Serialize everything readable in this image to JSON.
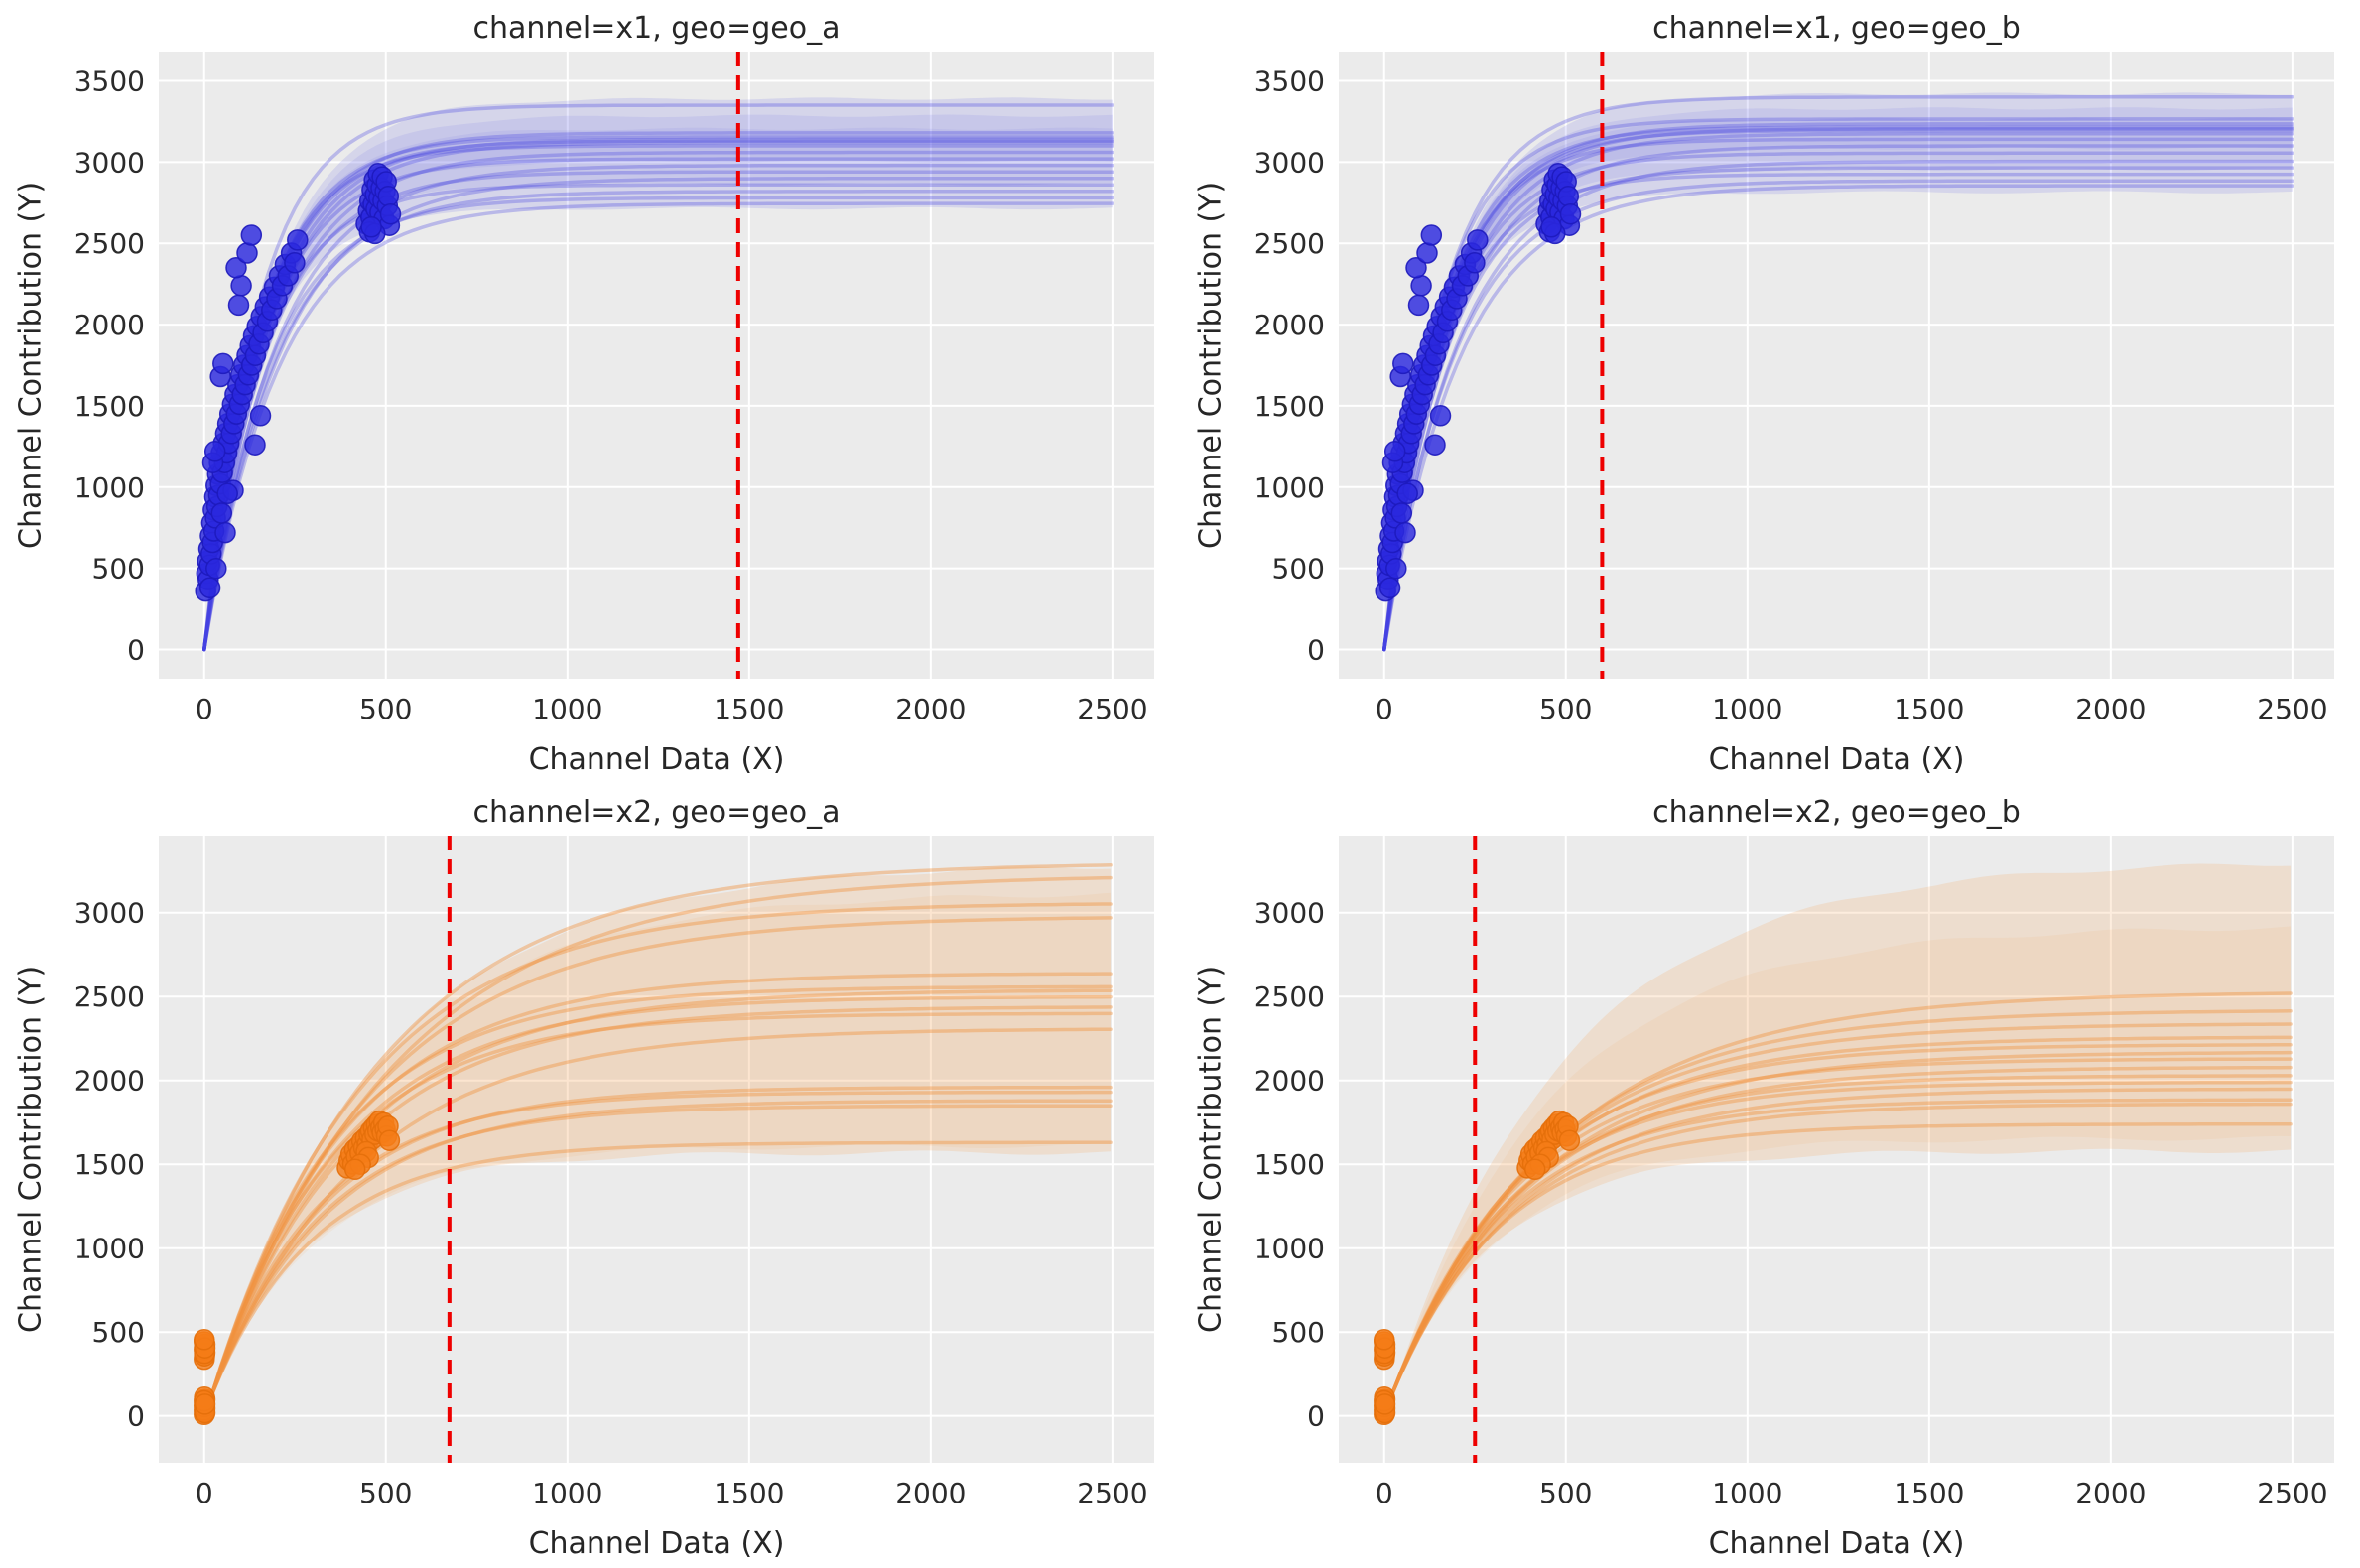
{
  "figure": {
    "background": "#ffffff",
    "plot_background": "#ebebeb",
    "grid_color": "#ffffff",
    "text_color": "#262626",
    "tick_color": "#2b2b2b",
    "vline_color": "#ee0000",
    "vline_dash": "15 9"
  },
  "chart_data": {
    "type": "line",
    "layout": "2x2 faceted posterior saturation curves with scatter and HDI bands",
    "curve_model": "y = y_offset + (ymax - y_offset) * (1 - exp(-(x - x_offset)/tau))",
    "shared": {
      "xlabel": "Channel Data (X)",
      "ylabel": "Channel Contribution (Y)",
      "xticks": [
        0,
        500,
        1000,
        1500,
        2000,
        2500
      ],
      "xlim": [
        -125,
        2615
      ],
      "grid": true,
      "legend": false
    },
    "scatter_sets": {
      "x1": [
        [
          4,
          360
        ],
        [
          7,
          470
        ],
        [
          9,
          545
        ],
        [
          11,
          430
        ],
        [
          13,
          620
        ],
        [
          15,
          520
        ],
        [
          17,
          700
        ],
        [
          19,
          590
        ],
        [
          21,
          780
        ],
        [
          23,
          660
        ],
        [
          25,
          860
        ],
        [
          27,
          730
        ],
        [
          29,
          940
        ],
        [
          31,
          810
        ],
        [
          33,
          1010
        ],
        [
          35,
          880
        ],
        [
          37,
          1080
        ],
        [
          40,
          950
        ],
        [
          42,
          1150
        ],
        [
          45,
          1020
        ],
        [
          47,
          1210
        ],
        [
          50,
          1090
        ],
        [
          53,
          1270
        ],
        [
          56,
          1150
        ],
        [
          59,
          1330
        ],
        [
          62,
          1210
        ],
        [
          65,
          1390
        ],
        [
          68,
          1270
        ],
        [
          71,
          1450
        ],
        [
          75,
          1330
        ],
        [
          78,
          1510
        ],
        [
          82,
          1390
        ],
        [
          85,
          1570
        ],
        [
          89,
          1450
        ],
        [
          93,
          1630
        ],
        [
          97,
          1510
        ],
        [
          101,
          1690
        ],
        [
          105,
          1570
        ],
        [
          109,
          1750
        ],
        [
          113,
          1630
        ],
        [
          118,
          1810
        ],
        [
          122,
          1690
        ],
        [
          127,
          1870
        ],
        [
          131,
          1750
        ],
        [
          136,
          1930
        ],
        [
          141,
          1810
        ],
        [
          146,
          1990
        ],
        [
          151,
          1880
        ],
        [
          157,
          2050
        ],
        [
          162,
          1950
        ],
        [
          168,
          2110
        ],
        [
          174,
          2020
        ],
        [
          180,
          2170
        ],
        [
          186,
          2090
        ],
        [
          193,
          2230
        ],
        [
          200,
          2160
        ],
        [
          207,
          2300
        ],
        [
          215,
          2240
        ],
        [
          223,
          2370
        ],
        [
          231,
          2300
        ],
        [
          240,
          2440
        ],
        [
          249,
          2380
        ],
        [
          257,
          2520
        ],
        [
          24,
          1150
        ],
        [
          30,
          1220
        ],
        [
          45,
          1680
        ],
        [
          52,
          1760
        ],
        [
          95,
          2120
        ],
        [
          102,
          2240
        ],
        [
          88,
          2350
        ],
        [
          118,
          2440
        ],
        [
          130,
          2550
        ],
        [
          16,
          380
        ],
        [
          33,
          500
        ],
        [
          58,
          720
        ],
        [
          80,
          980
        ],
        [
          140,
          1260
        ],
        [
          155,
          1440
        ],
        [
          48,
          840
        ],
        [
          64,
          960
        ],
        [
          446,
          2620
        ],
        [
          452,
          2700
        ],
        [
          456,
          2760
        ],
        [
          459,
          2660
        ],
        [
          462,
          2830
        ],
        [
          465,
          2740
        ],
        [
          468,
          2890
        ],
        [
          471,
          2800
        ],
        [
          473,
          2710
        ],
        [
          476,
          2860
        ],
        [
          479,
          2930
        ],
        [
          481,
          2780
        ],
        [
          484,
          2690
        ],
        [
          487,
          2840
        ],
        [
          490,
          2910
        ],
        [
          492,
          2760
        ],
        [
          495,
          2650
        ],
        [
          498,
          2820
        ],
        [
          501,
          2880
        ],
        [
          504,
          2730
        ],
        [
          507,
          2790
        ],
        [
          510,
          2610
        ],
        [
          513,
          2680
        ],
        [
          455,
          2570
        ],
        [
          470,
          2560
        ],
        [
          460,
          2600
        ]
      ],
      "x2": [
        [
          0,
          8
        ],
        [
          1,
          25
        ],
        [
          2,
          45
        ],
        [
          0,
          62
        ],
        [
          1,
          80
        ],
        [
          2,
          98
        ],
        [
          0,
          35
        ],
        [
          1,
          55
        ],
        [
          2,
          18
        ],
        [
          1,
          112
        ],
        [
          0,
          90
        ],
        [
          2,
          70
        ],
        [
          0,
          338
        ],
        [
          1,
          358
        ],
        [
          2,
          378
        ],
        [
          0,
          395
        ],
        [
          1,
          412
        ],
        [
          2,
          428
        ],
        [
          0,
          442
        ],
        [
          1,
          372
        ],
        [
          2,
          405
        ],
        [
          0,
          455
        ],
        [
          394,
          1478
        ],
        [
          399,
          1522
        ],
        [
          404,
          1560
        ],
        [
          409,
          1502
        ],
        [
          414,
          1588
        ],
        [
          419,
          1545
        ],
        [
          424,
          1608
        ],
        [
          429,
          1568
        ],
        [
          434,
          1638
        ],
        [
          439,
          1598
        ],
        [
          444,
          1658
        ],
        [
          449,
          1618
        ],
        [
          454,
          1678
        ],
        [
          458,
          1698
        ],
        [
          462,
          1648
        ],
        [
          466,
          1718
        ],
        [
          470,
          1678
        ],
        [
          474,
          1738
        ],
        [
          478,
          1698
        ],
        [
          482,
          1758
        ],
        [
          486,
          1718
        ],
        [
          490,
          1688
        ],
        [
          494,
          1748
        ],
        [
          498,
          1708
        ],
        [
          502,
          1668
        ],
        [
          506,
          1728
        ],
        [
          510,
          1642
        ],
        [
          446,
          1575
        ],
        [
          452,
          1540
        ],
        [
          430,
          1500
        ],
        [
          415,
          1470
        ]
      ]
    },
    "panels": [
      {
        "id": "x1_geo_a",
        "title": "channel=x1, geo=geo_a",
        "yticks": [
          0,
          500,
          1000,
          1500,
          2000,
          2500,
          3000,
          3500
        ],
        "ylim": [
          -180,
          3680
        ],
        "scatter_set": "x1",
        "vline_x": 1470,
        "x_offset": 0,
        "y_offset": 0,
        "scatter_color": "#2b28de",
        "scatter_stroke": "#1d1abc",
        "curve_color": "#4542e0",
        "curve_opacity": 0.3,
        "band_color": "#6d6ae6",
        "band_wobble": 7,
        "curves": [
          [
            3350,
            150
          ],
          [
            3180,
            165
          ],
          [
            3155,
            155
          ],
          [
            3140,
            170
          ],
          [
            3130,
            160
          ],
          [
            3120,
            175
          ],
          [
            3100,
            150
          ],
          [
            3060,
            185
          ],
          [
            3020,
            165
          ],
          [
            2980,
            200
          ],
          [
            2940,
            175
          ],
          [
            2900,
            210
          ],
          [
            2860,
            160
          ],
          [
            2820,
            195
          ],
          [
            2780,
            180
          ],
          [
            2745,
            205
          ]
        ],
        "bands": [
          [
            2715,
            150,
            3390,
            172,
            0.17
          ],
          [
            2865,
            158,
            3285,
            166,
            0.13
          ],
          [
            3005,
            165,
            3205,
            161,
            0.11
          ]
        ]
      },
      {
        "id": "x1_geo_b",
        "title": "channel=x1, geo=geo_b",
        "yticks": [
          0,
          500,
          1000,
          1500,
          2000,
          2500,
          3000,
          3500
        ],
        "ylim": [
          -180,
          3680
        ],
        "scatter_set": "x1",
        "vline_x": 600,
        "x_offset": 0,
        "y_offset": 0,
        "scatter_color": "#2b28de",
        "scatter_stroke": "#1d1abc",
        "curve_color": "#4542e0",
        "curve_opacity": 0.3,
        "band_color": "#6d6ae6",
        "band_wobble": 7,
        "curves": [
          [
            3400,
            160
          ],
          [
            3265,
            150
          ],
          [
            3235,
            170
          ],
          [
            3215,
            158
          ],
          [
            3205,
            172
          ],
          [
            3195,
            162
          ],
          [
            3175,
            180
          ],
          [
            3140,
            155
          ],
          [
            3100,
            190
          ],
          [
            3055,
            168
          ],
          [
            3005,
            205
          ],
          [
            2965,
            178
          ],
          [
            2925,
            160
          ],
          [
            2885,
            195
          ],
          [
            2855,
            210
          ]
        ],
        "bands": [
          [
            2815,
            155,
            3420,
            174,
            0.17
          ],
          [
            2955,
            162,
            3330,
            168,
            0.13
          ],
          [
            3085,
            168,
            3265,
            162,
            0.11
          ]
        ]
      },
      {
        "id": "x2_geo_a",
        "title": "channel=x2, geo=geo_a",
        "yticks": [
          0,
          500,
          1000,
          1500,
          2000,
          2500,
          3000
        ],
        "ylim": [
          -280,
          3460
        ],
        "scatter_set": "x2",
        "vline_x": 675,
        "x_offset": 20,
        "y_offset": 120,
        "scatter_color": "#f57d17",
        "scatter_stroke": "#e46f0a",
        "curve_color": "#f0923f",
        "curve_opacity": 0.42,
        "band_color": "#f3a35c",
        "band_wobble": 13,
        "curves": [
          [
            3300,
            470
          ],
          [
            3230,
            500
          ],
          [
            3060,
            420
          ],
          [
            2980,
            440
          ],
          [
            2640,
            370
          ],
          [
            2560,
            345
          ],
          [
            2540,
            390
          ],
          [
            2500,
            360
          ],
          [
            2440,
            380
          ],
          [
            2400,
            340
          ],
          [
            2310,
            410
          ],
          [
            1960,
            320
          ],
          [
            1930,
            300
          ],
          [
            1880,
            330
          ],
          [
            1850,
            310
          ],
          [
            1630,
            290
          ]
        ],
        "bands": [
          [
            1570,
            280,
            3290,
            470,
            0.2
          ],
          [
            1610,
            300,
            3120,
            440,
            0.1
          ]
        ]
      },
      {
        "id": "x2_geo_b",
        "title": "channel=x2, geo=geo_b",
        "yticks": [
          0,
          500,
          1000,
          1500,
          2000,
          2500,
          3000
        ],
        "ylim": [
          -280,
          3460
        ],
        "scatter_set": "x2",
        "vline_x": 250,
        "x_offset": 20,
        "y_offset": 120,
        "scatter_color": "#f57d17",
        "scatter_stroke": "#e46f0a",
        "curve_color": "#f0923f",
        "curve_opacity": 0.42,
        "band_color": "#f3a35c",
        "band_wobble": 13,
        "curves": [
          [
            2530,
            460
          ],
          [
            2420,
            420
          ],
          [
            2340,
            400
          ],
          [
            2260,
            385
          ],
          [
            2215,
            365
          ],
          [
            2170,
            395
          ],
          [
            2130,
            355
          ],
          [
            2080,
            375
          ],
          [
            2030,
            345
          ],
          [
            1990,
            335
          ],
          [
            1950,
            360
          ],
          [
            1885,
            325
          ],
          [
            1860,
            340
          ],
          [
            1740,
            305
          ]
        ],
        "bands": [
          [
            1580,
            290,
            3310,
            480,
            0.2
          ],
          [
            1655,
            315,
            2920,
            440,
            0.1
          ]
        ]
      }
    ]
  }
}
